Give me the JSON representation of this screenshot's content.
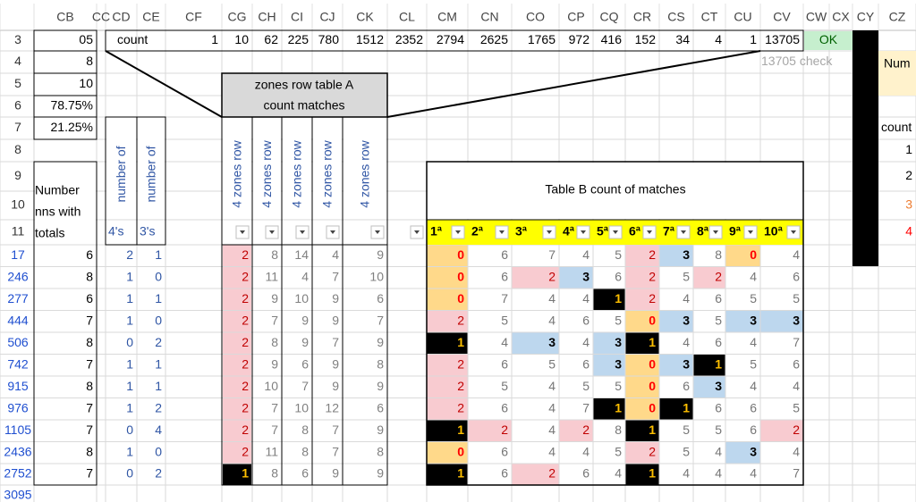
{
  "column_headers": [
    "CB",
    "CC",
    "CD",
    "CE",
    "CF",
    "CG",
    "CH",
    "CI",
    "CJ",
    "CK",
    "CL",
    "CM",
    "CN",
    "CO",
    "CP",
    "CQ",
    "CR",
    "CS",
    "CT",
    "CU",
    "CV",
    "CW",
    "CX",
    "CY",
    "CZ"
  ],
  "row_numbers": [
    "3",
    "4",
    "5",
    "6",
    "7",
    "8",
    "9",
    "10",
    "11",
    "17",
    "246",
    "277",
    "444",
    "506",
    "742",
    "915",
    "976",
    "1105",
    "2436",
    "2752",
    "3095"
  ],
  "summary": {
    "cb_values": [
      "05",
      "8",
      "10",
      "78.75%",
      "21.25%"
    ],
    "count_label": "count",
    "counts": [
      1,
      10,
      62,
      225,
      780,
      1512,
      2352,
      2794,
      2625,
      1765,
      972,
      416,
      152,
      34,
      4,
      1
    ],
    "total": 13705,
    "status": "OK",
    "check": "13705 check"
  },
  "table_a": {
    "box_title": [
      "zones row table A",
      "count matches"
    ],
    "totals_header": [
      "Number",
      "nns with",
      "totals"
    ],
    "number_of": [
      "number of",
      "number of"
    ],
    "sub_headers": [
      "4's",
      "3's"
    ],
    "zones_headers": [
      "4 zones row",
      "4 zones row",
      "4 zones row",
      "4 zones row",
      "4 zones row"
    ],
    "rows": [
      [
        6,
        2,
        1,
        2,
        8,
        14,
        4,
        9
      ],
      [
        8,
        1,
        0,
        2,
        11,
        4,
        7,
        10
      ],
      [
        6,
        1,
        1,
        2,
        9,
        10,
        9,
        6
      ],
      [
        7,
        1,
        0,
        2,
        7,
        9,
        9,
        7
      ],
      [
        8,
        0,
        2,
        2,
        8,
        9,
        7,
        9
      ],
      [
        7,
        1,
        1,
        2,
        9,
        6,
        9,
        8
      ],
      [
        8,
        1,
        1,
        2,
        10,
        7,
        9,
        9
      ],
      [
        7,
        1,
        2,
        2,
        7,
        10,
        12,
        6
      ],
      [
        7,
        0,
        4,
        2,
        7,
        8,
        7,
        9
      ],
      [
        8,
        1,
        0,
        2,
        11,
        8,
        7,
        8
      ],
      [
        7,
        0,
        2,
        1,
        8,
        6,
        9,
        9
      ]
    ]
  },
  "table_b": {
    "title": "Table B count of matches",
    "headers": [
      "1ª",
      "2ª",
      "3ª",
      "4ª",
      "5ª",
      "6ª",
      "7ª",
      "8ª",
      "9ª",
      "10ª"
    ],
    "rows": [
      [
        0,
        6,
        7,
        4,
        5,
        2,
        3,
        8,
        0,
        4
      ],
      [
        0,
        6,
        2,
        3,
        6,
        2,
        5,
        2,
        4,
        6
      ],
      [
        0,
        7,
        4,
        4,
        1,
        2,
        4,
        6,
        5,
        5
      ],
      [
        2,
        5,
        4,
        6,
        5,
        0,
        3,
        5,
        3,
        3
      ],
      [
        1,
        4,
        3,
        4,
        3,
        1,
        4,
        6,
        4,
        7
      ],
      [
        2,
        6,
        5,
        6,
        3,
        0,
        3,
        1,
        5,
        6
      ],
      [
        2,
        5,
        4,
        5,
        5,
        0,
        6,
        3,
        4,
        4
      ],
      [
        2,
        6,
        4,
        7,
        1,
        0,
        1,
        6,
        6,
        5
      ],
      [
        1,
        2,
        4,
        2,
        8,
        1,
        5,
        5,
        6,
        2
      ],
      [
        0,
        6,
        4,
        4,
        5,
        2,
        5,
        4,
        3,
        4
      ],
      [
        1,
        6,
        2,
        6,
        4,
        1,
        4,
        4,
        4,
        7
      ]
    ]
  },
  "side_panel": {
    "label": "Num",
    "count_label": "count",
    "values": [
      1,
      2,
      3,
      4
    ]
  }
}
